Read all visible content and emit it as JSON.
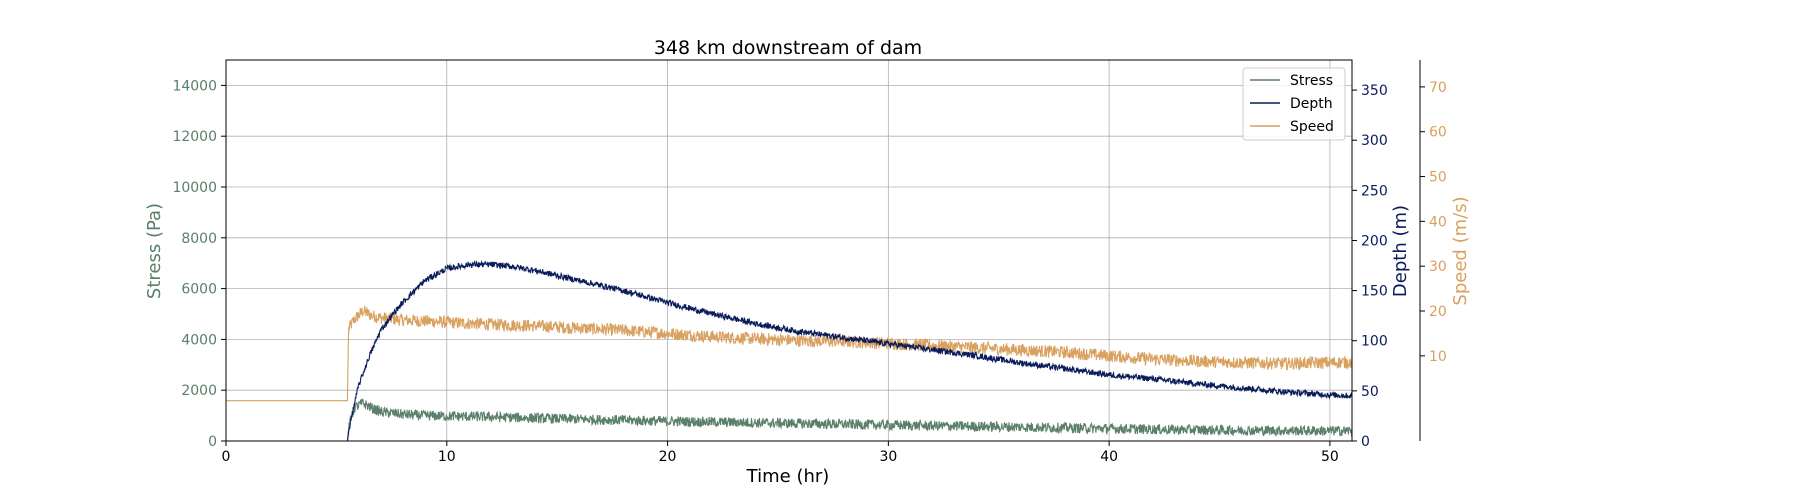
{
  "chart_data": {
    "type": "line",
    "title": "348 km downstream of dam",
    "xlabel": "Time (hr)",
    "xlim": [
      0,
      51
    ],
    "x_ticks": [
      0,
      10,
      20,
      30,
      40,
      50
    ],
    "grid": true,
    "legend_position": "top-right",
    "axes": {
      "stress": {
        "label": "Stress (Pa)",
        "side": "left",
        "color": "#5a7f6a",
        "ylim": [
          0,
          15000
        ],
        "ticks": [
          0,
          2000,
          4000,
          6000,
          8000,
          10000,
          12000,
          14000
        ]
      },
      "depth": {
        "label": "Depth (m)",
        "side": "right",
        "color": "#0a1c5a",
        "ylim": [
          0,
          380
        ],
        "ticks": [
          0,
          50,
          100,
          150,
          200,
          250,
          300,
          350
        ]
      },
      "speed": {
        "label": "Speed (m/s)",
        "side": "right-outer",
        "color": "#d9a160",
        "ylim": [
          -9,
          76
        ],
        "ticks": [
          10,
          20,
          30,
          40,
          50,
          60,
          70
        ]
      }
    },
    "series": [
      {
        "name": "Stress",
        "axis": "stress",
        "color": "#5a7f6a",
        "x": [
          0,
          5.5,
          5.55,
          5.8,
          6.2,
          6.6,
          7,
          8,
          9,
          10,
          12,
          14,
          16,
          18,
          20,
          22,
          24,
          26,
          28,
          30,
          32,
          34,
          36,
          38,
          40,
          42,
          44,
          46,
          48,
          50,
          51
        ],
        "y": [
          0,
          0,
          500,
          1300,
          1500,
          1300,
          1150,
          1050,
          1000,
          980,
          950,
          900,
          860,
          820,
          780,
          750,
          720,
          690,
          660,
          630,
          600,
          575,
          550,
          520,
          490,
          460,
          440,
          420,
          410,
          400,
          400
        ],
        "noise": 200
      },
      {
        "name": "Depth",
        "axis": "depth",
        "color": "#0a1c5a",
        "x": [
          0,
          5.5,
          5.6,
          5.8,
          6,
          6.5,
          7,
          7.5,
          8,
          9,
          10,
          11,
          12,
          13,
          14,
          15,
          16,
          18,
          20,
          22,
          24,
          26,
          28,
          30,
          32,
          34,
          36,
          38,
          40,
          42,
          44,
          46,
          48,
          50,
          51
        ],
        "y": [
          0,
          0,
          15,
          35,
          55,
          85,
          110,
          125,
          138,
          160,
          172,
          176,
          176,
          174,
          170,
          165,
          160,
          150,
          138,
          127,
          117,
          109,
          103,
          97,
          91,
          85,
          78,
          72,
          66,
          62,
          57,
          53,
          49,
          46,
          45
        ],
        "noise": 3
      },
      {
        "name": "Speed",
        "axis": "speed",
        "color": "#d9a160",
        "x": [
          0,
          5.5,
          5.55,
          5.8,
          6.2,
          6.6,
          7,
          8,
          10,
          12,
          14,
          16,
          18,
          20,
          22,
          24,
          26,
          28,
          30,
          32,
          34,
          36,
          38,
          40,
          42,
          44,
          46,
          48,
          50,
          51
        ],
        "y": [
          0,
          0,
          16,
          18,
          20,
          19,
          18.5,
          18,
          17.5,
          17,
          16.7,
          16.2,
          15.7,
          15,
          14.3,
          13.8,
          13.4,
          13.2,
          12.8,
          12.3,
          11.8,
          11.3,
          10.8,
          10,
          9.3,
          8.8,
          8.5,
          8.3,
          8.5,
          8.6
        ],
        "noise": 1.4
      }
    ]
  }
}
